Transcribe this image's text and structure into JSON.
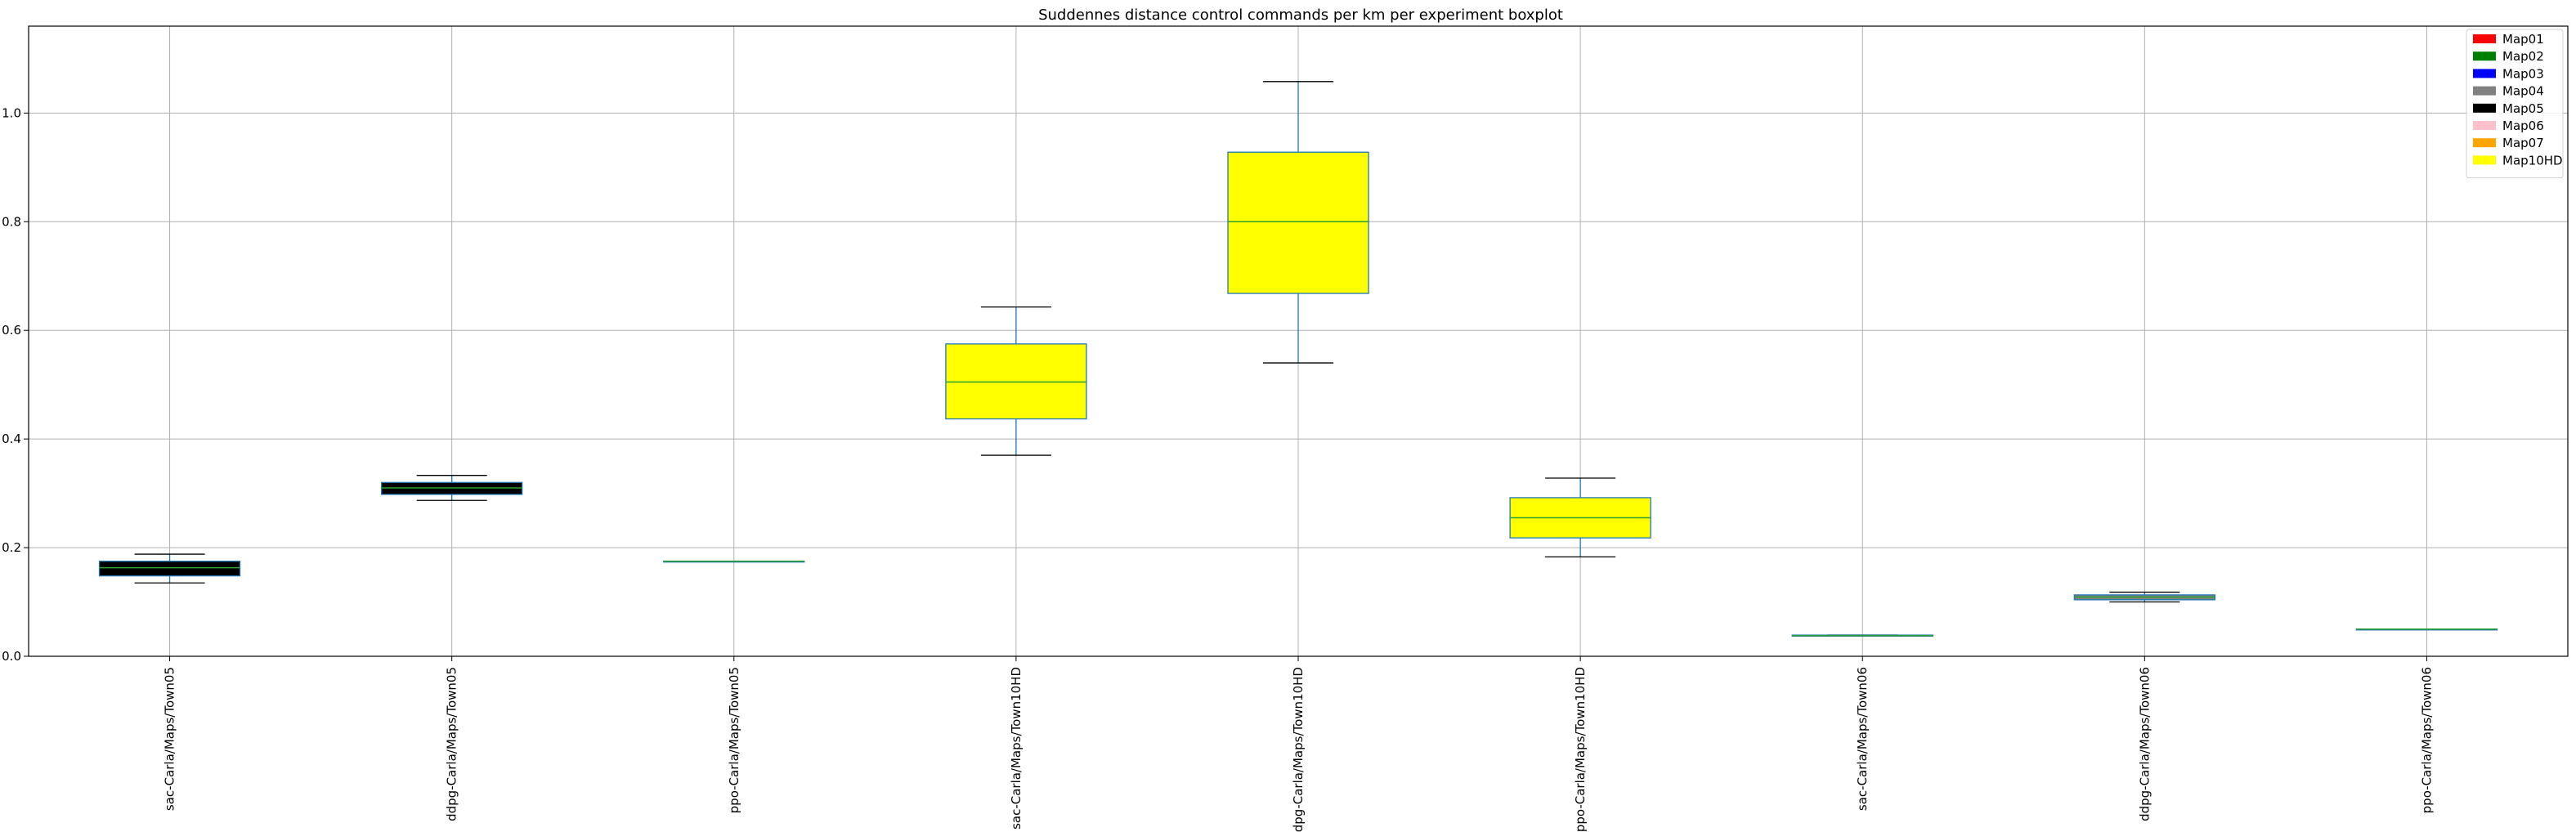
{
  "chart_data": {
    "type": "boxplot",
    "title": "Suddennes distance control commands per km per experiment boxplot",
    "xlabel": "",
    "ylabel": "",
    "ylim": [
      0.0,
      1.16
    ],
    "yticks": [
      0.0,
      0.2,
      0.4,
      0.6,
      0.8,
      1.0
    ],
    "grid": true,
    "legend_position": "top-right",
    "legend": [
      {
        "name": "Map01",
        "color": "#ff0000"
      },
      {
        "name": "Map02",
        "color": "#008000"
      },
      {
        "name": "Map03",
        "color": "#0000ff"
      },
      {
        "name": "Map04",
        "color": "#808080"
      },
      {
        "name": "Map05",
        "color": "#000000"
      },
      {
        "name": "Map06",
        "color": "#ffc0cb"
      },
      {
        "name": "Map07",
        "color": "#ffa500"
      },
      {
        "name": "Map10HD",
        "color": "#ffff00"
      }
    ],
    "categories": [
      "sac-Carla/Maps/Town05",
      "ddpg-Carla/Maps/Town05",
      "ppo-Carla/Maps/Town05",
      "sac-Carla/Maps/Town10HD",
      "ddpg-Carla/Maps/Town10HD",
      "ppo-Carla/Maps/Town10HD",
      "sac-Carla/Maps/Town06",
      "ddpg-Carla/Maps/Town06",
      "ppo-Carla/Maps/Town06"
    ],
    "boxes": [
      {
        "whislo": 0.135,
        "q1": 0.148,
        "med": 0.163,
        "q3": 0.175,
        "whishi": 0.188,
        "color": "#000000"
      },
      {
        "whislo": 0.287,
        "q1": 0.298,
        "med": 0.31,
        "q3": 0.32,
        "whishi": 0.333,
        "color": "#000000"
      },
      {
        "whislo": 0.175,
        "q1": 0.175,
        "med": 0.175,
        "q3": 0.175,
        "whishi": 0.175,
        "color": "#000000"
      },
      {
        "whislo": 0.37,
        "q1": 0.437,
        "med": 0.505,
        "q3": 0.575,
        "whishi": 0.643,
        "color": "#ffff00"
      },
      {
        "whislo": 0.54,
        "q1": 0.668,
        "med": 0.8,
        "q3": 0.928,
        "whishi": 1.058,
        "color": "#ffff00"
      },
      {
        "whislo": 0.183,
        "q1": 0.218,
        "med": 0.255,
        "q3": 0.292,
        "whishi": 0.328,
        "color": "#ffff00"
      },
      {
        "whislo": 0.037,
        "q1": 0.037,
        "med": 0.038,
        "q3": 0.039,
        "whishi": 0.039,
        "color": "#008000"
      },
      {
        "whislo": 0.1,
        "q1": 0.104,
        "med": 0.109,
        "q3": 0.113,
        "whishi": 0.118,
        "color": "#808080"
      },
      {
        "whislo": 0.05,
        "q1": 0.05,
        "med": 0.05,
        "q3": 0.05,
        "whishi": 0.05,
        "color": "#808080"
      }
    ]
  }
}
